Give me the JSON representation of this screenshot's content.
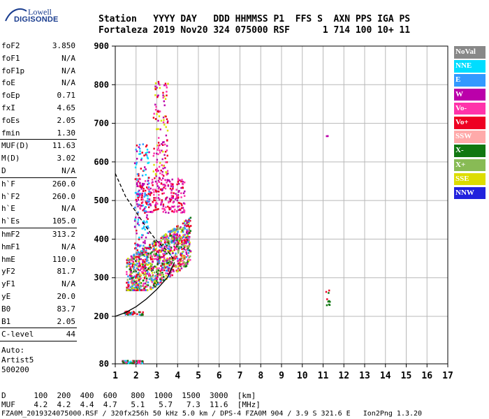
{
  "logo": {
    "line1": "Lowell",
    "line2": "DIGISONDE"
  },
  "header": {
    "labels": "Station   YYYY DAY   DDD HHMMSS P1  FFS S  AXN PPS IGA PS",
    "values": "Fortaleza 2019 Nov20 324 075000 RSF      1 714 100 10+ 11"
  },
  "params": {
    "g1": [
      {
        "name": "foF2",
        "value": "3.850"
      },
      {
        "name": "foF1",
        "value": "N/A"
      },
      {
        "name": "foF1p",
        "value": "N/A"
      },
      {
        "name": "foE",
        "value": "N/A"
      },
      {
        "name": "foEp",
        "value": "0.71"
      },
      {
        "name": "fxI",
        "value": "4.65"
      },
      {
        "name": "foEs",
        "value": "2.05"
      },
      {
        "name": "fmin",
        "value": "1.30"
      }
    ],
    "g2": [
      {
        "name": "MUF(D)",
        "value": "11.63"
      },
      {
        "name": "M(D)",
        "value": "3.02"
      },
      {
        "name": "D",
        "value": "N/A"
      }
    ],
    "g3": [
      {
        "name": "h`F",
        "value": "260.0"
      },
      {
        "name": "h`F2",
        "value": "260.0"
      },
      {
        "name": "h`E",
        "value": "N/A"
      },
      {
        "name": "h`Es",
        "value": "105.0"
      }
    ],
    "g4": [
      {
        "name": "hmF2",
        "value": "313.2"
      },
      {
        "name": "hmF1",
        "value": "N/A"
      },
      {
        "name": "hmE",
        "value": "110.0"
      },
      {
        "name": "yF2",
        "value": "81.7"
      },
      {
        "name": "yF1",
        "value": "N/A"
      },
      {
        "name": "yE",
        "value": "20.0"
      },
      {
        "name": "B0",
        "value": "83.7"
      },
      {
        "name": "B1",
        "value": "2.05"
      }
    ],
    "g5": [
      {
        "name": "C-level",
        "value": "44"
      }
    ],
    "auto": [
      "Auto:",
      "Artist5",
      "500200"
    ]
  },
  "legend": [
    {
      "label": "NoVal",
      "color": "#888888"
    },
    {
      "label": "NNE",
      "color": "#00ddff"
    },
    {
      "label": "E",
      "color": "#3399ff"
    },
    {
      "label": "W",
      "color": "#bb00aa"
    },
    {
      "label": "Vo-",
      "color": "#ff33aa"
    },
    {
      "label": "Vo+",
      "color": "#ee0022"
    },
    {
      "label": "SSW",
      "color": "#ffaaaa"
    },
    {
      "label": "X-",
      "color": "#117711"
    },
    {
      "label": "X+",
      "color": "#88bb55"
    },
    {
      "label": "SSE",
      "color": "#dddd00"
    },
    {
      "label": "NNW",
      "color": "#2222dd"
    }
  ],
  "chart_data": {
    "type": "scatter",
    "title": "",
    "xlabel": "",
    "ylabel": "",
    "xlim": [
      1,
      17
    ],
    "ylim": [
      80,
      900
    ],
    "x_ticks": [
      1,
      2,
      3,
      4,
      5,
      6,
      7,
      8,
      9,
      10,
      11,
      12,
      13,
      14,
      15,
      16,
      17
    ],
    "y_ticks": [
      80,
      200,
      300,
      400,
      500,
      600,
      700,
      800,
      900
    ],
    "grid": true,
    "legend_position": "right",
    "clusters": [
      {
        "name": "F-layer trace",
        "x_range": [
          1.5,
          4.6
        ],
        "y_range": [
          270,
          470
        ],
        "colors": [
          "Vo+",
          "W",
          "E",
          "SSE",
          "X-",
          "X+",
          "Vo-"
        ]
      },
      {
        "name": "F spread upper",
        "x_range": [
          2.0,
          4.3
        ],
        "y_range": [
          470,
          560
        ],
        "colors": [
          "W",
          "Vo-",
          "Vo+"
        ]
      },
      {
        "name": "High traces",
        "x_range": [
          2.8,
          3.5
        ],
        "y_range": [
          560,
          810
        ],
        "colors": [
          "SSE",
          "W",
          "Vo-",
          "Vo+"
        ]
      },
      {
        "name": "Mid traces",
        "x_range": [
          1.9,
          2.6
        ],
        "y_range": [
          360,
          650
        ],
        "colors": [
          "E",
          "NNE",
          "Vo+",
          "W"
        ]
      },
      {
        "name": "Es layer",
        "x_range": [
          1.3,
          2.3
        ],
        "y_range": [
          83,
          90
        ],
        "colors": [
          "Vo+",
          "Vo-",
          "X-",
          "NNE"
        ]
      },
      {
        "name": "Low trace",
        "x_range": [
          1.4,
          2.3
        ],
        "y_range": [
          205,
          215
        ],
        "colors": [
          "X-",
          "Vo+",
          "E"
        ]
      },
      {
        "name": "Isolated echo 11.1",
        "x_range": [
          11.1,
          11.3
        ],
        "y_range": [
          230,
          270
        ],
        "colors": [
          "Vo+",
          "X-"
        ]
      },
      {
        "name": "Isolated echo 11.2",
        "x_range": [
          11.1,
          11.2
        ],
        "y_range": [
          668,
          672
        ],
        "colors": [
          "W"
        ]
      }
    ],
    "profile_curve": {
      "x": [
        1,
        1.5,
        2,
        2.5,
        3,
        3.5,
        3.85
      ],
      "y": [
        200,
        210,
        225,
        245,
        270,
        300,
        340
      ]
    },
    "dashed_curve": {
      "x": [
        1,
        1.5,
        2,
        2.5,
        3,
        3.5,
        3.85
      ],
      "y": [
        570,
        510,
        470,
        430,
        395,
        370,
        345
      ]
    },
    "dmuf_table": {
      "d_label": "D",
      "d_values": [
        "100",
        "200",
        "400",
        "600",
        "800",
        "1000",
        "1500",
        "3000"
      ],
      "d_unit": "[km]",
      "muf_label": "MUF",
      "muf_values": [
        "4.2",
        "4.2",
        "4.4",
        "4.7",
        "5.1",
        "5.7",
        "7.3",
        "11.6"
      ],
      "muf_unit": "[MHz]"
    }
  },
  "footer": {
    "line1": "D      100  200  400  600   800  1000  1500  3000  [km]",
    "line2": "MUF    4.2  4.2  4.4  4.7   5.1   5.7   7.3  11.6  [MHz]",
    "line3": "FZA0M_2019324075000.RSF / 320fx256h 50 kHz 5.0 km / DPS-4 FZA0M 904 / 3.9 S 321.6 E   Ion2Png 1.3.20"
  }
}
